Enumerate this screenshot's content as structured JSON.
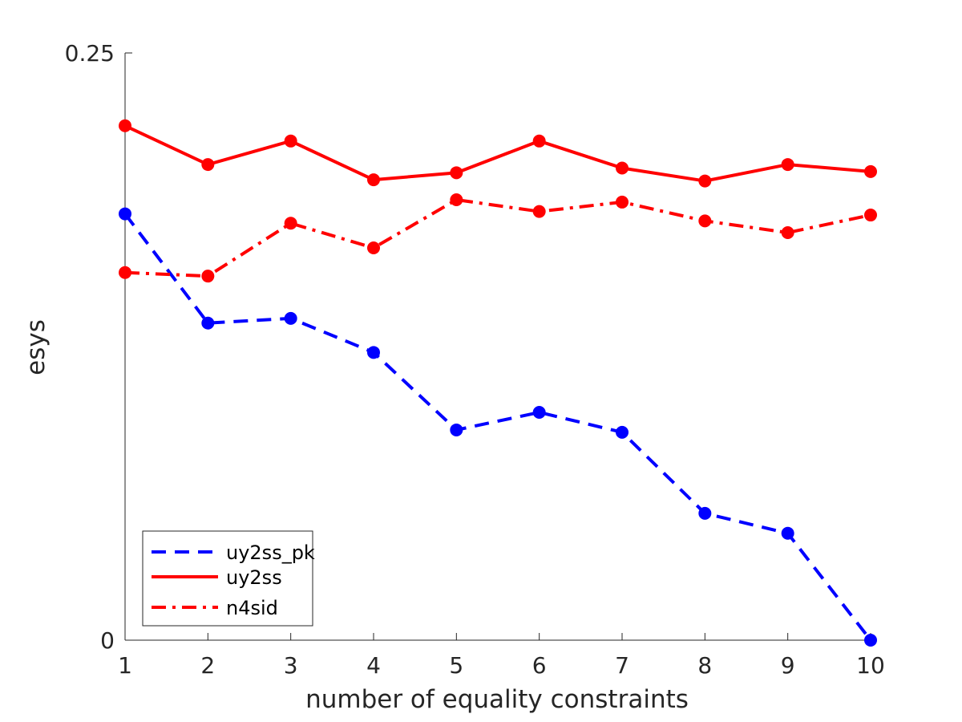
{
  "chart_data": {
    "type": "line",
    "xlabel": "number of equality constraints",
    "ylabel": "esys",
    "xlim": [
      1,
      10
    ],
    "ylim": [
      0,
      0.25
    ],
    "x": [
      1,
      2,
      3,
      4,
      5,
      6,
      7,
      8,
      9,
      10
    ],
    "x_ticks": [
      "1",
      "2",
      "3",
      "4",
      "5",
      "6",
      "7",
      "8",
      "9",
      "10"
    ],
    "y_ticks": [
      {
        "value": 0,
        "label": "0"
      },
      {
        "value": 0.25,
        "label": "0.25"
      }
    ],
    "grid": false,
    "legend_position": "bottom-left",
    "series": [
      {
        "name": "uy2ss_pk",
        "color": "#0000ff",
        "line_style": "dashed",
        "marker": "circle",
        "values": [
          0.1815,
          0.135,
          0.137,
          0.1225,
          0.0895,
          0.097,
          0.0885,
          0.054,
          0.0455,
          0.0
        ]
      },
      {
        "name": "uy2ss",
        "color": "#ff0000",
        "line_style": "solid",
        "marker": "circle",
        "values": [
          0.219,
          0.2025,
          0.2125,
          0.196,
          0.199,
          0.2125,
          0.201,
          0.1955,
          0.2025,
          0.1995
        ]
      },
      {
        "name": "n4sid",
        "color": "#ff0000",
        "line_style": "dashdot",
        "marker": "circle",
        "values": [
          0.1565,
          0.155,
          0.1775,
          0.167,
          0.1875,
          0.1825,
          0.1865,
          0.1785,
          0.1735,
          0.181
        ]
      }
    ]
  }
}
